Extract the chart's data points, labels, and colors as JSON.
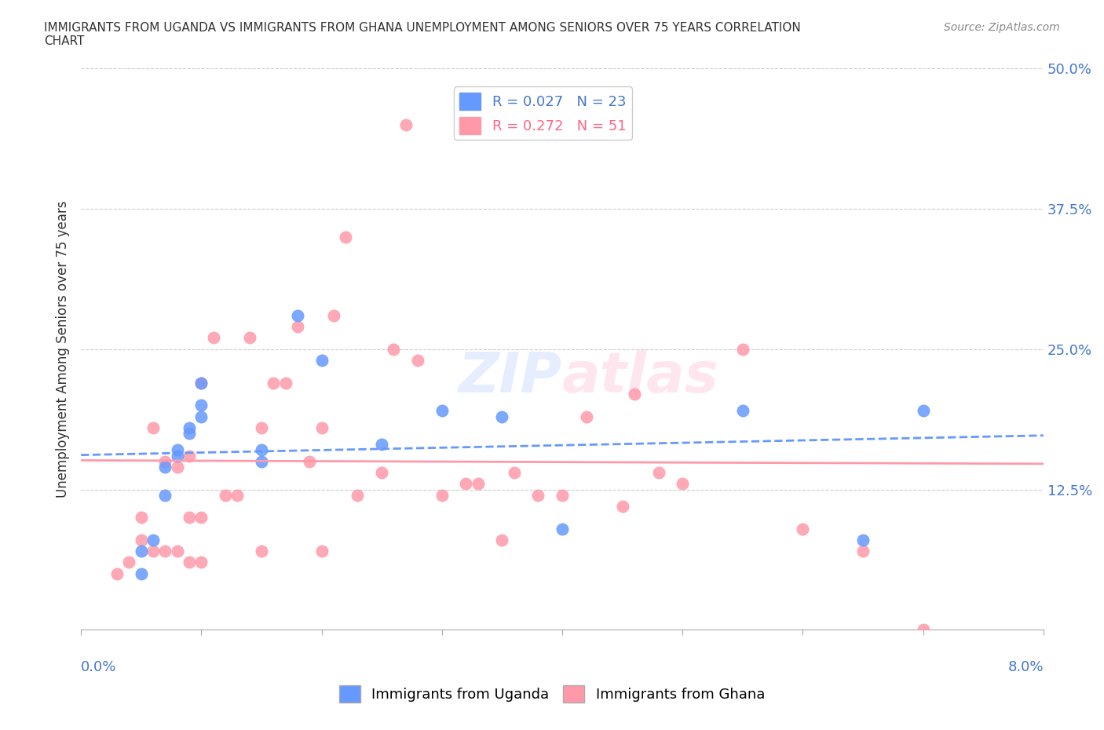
{
  "title": "IMMIGRANTS FROM UGANDA VS IMMIGRANTS FROM GHANA UNEMPLOYMENT AMONG SENIORS OVER 75 YEARS CORRELATION\nCHART",
  "source_text": "Source: ZipAtlas.com",
  "xlabel": "",
  "ylabel": "Unemployment Among Seniors over 75 years",
  "xlim": [
    0.0,
    0.08
  ],
  "ylim": [
    0.0,
    0.5
  ],
  "yticks": [
    0.0,
    0.125,
    0.25,
    0.375,
    0.5
  ],
  "ytick_labels": [
    "",
    "12.5%",
    "25.0%",
    "37.5%",
    "50.0%"
  ],
  "legend_r1": "R = 0.027   N = 23",
  "legend_r2": "R = 0.272   N = 51",
  "legend_label1": "Immigrants from Uganda",
  "legend_label2": "Immigrants from Ghana",
  "color_uganda": "#6699FF",
  "color_ghana": "#FF99AA",
  "uganda_x": [
    0.005,
    0.005,
    0.006,
    0.007,
    0.007,
    0.008,
    0.008,
    0.009,
    0.009,
    0.01,
    0.01,
    0.01,
    0.015,
    0.015,
    0.018,
    0.02,
    0.025,
    0.03,
    0.035,
    0.04,
    0.055,
    0.065,
    0.07
  ],
  "uganda_y": [
    0.05,
    0.07,
    0.08,
    0.12,
    0.145,
    0.155,
    0.16,
    0.175,
    0.18,
    0.19,
    0.2,
    0.22,
    0.15,
    0.16,
    0.28,
    0.24,
    0.165,
    0.195,
    0.19,
    0.09,
    0.195,
    0.08,
    0.195
  ],
  "ghana_x": [
    0.003,
    0.004,
    0.005,
    0.005,
    0.006,
    0.006,
    0.007,
    0.007,
    0.008,
    0.008,
    0.009,
    0.009,
    0.009,
    0.01,
    0.01,
    0.01,
    0.011,
    0.012,
    0.013,
    0.014,
    0.015,
    0.015,
    0.016,
    0.017,
    0.018,
    0.019,
    0.02,
    0.02,
    0.021,
    0.022,
    0.023,
    0.025,
    0.026,
    0.027,
    0.028,
    0.03,
    0.032,
    0.033,
    0.035,
    0.036,
    0.038,
    0.04,
    0.042,
    0.045,
    0.046,
    0.048,
    0.05,
    0.055,
    0.06,
    0.065,
    0.07
  ],
  "ghana_y": [
    0.05,
    0.06,
    0.08,
    0.1,
    0.07,
    0.18,
    0.07,
    0.15,
    0.07,
    0.145,
    0.06,
    0.1,
    0.155,
    0.06,
    0.1,
    0.22,
    0.26,
    0.12,
    0.12,
    0.26,
    0.07,
    0.18,
    0.22,
    0.22,
    0.27,
    0.15,
    0.18,
    0.07,
    0.28,
    0.35,
    0.12,
    0.14,
    0.25,
    0.45,
    0.24,
    0.12,
    0.13,
    0.13,
    0.08,
    0.14,
    0.12,
    0.12,
    0.19,
    0.11,
    0.21,
    0.14,
    0.13,
    0.25,
    0.09,
    0.07,
    0.0
  ],
  "background_color": "#ffffff",
  "grid_color": "#cccccc"
}
